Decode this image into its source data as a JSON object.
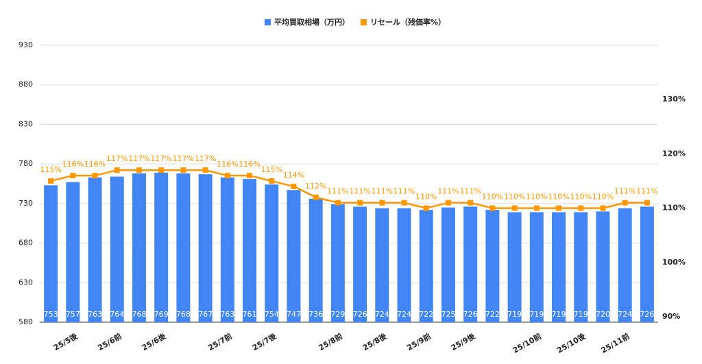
{
  "chart_data": {
    "type": "bar_line",
    "categories": [
      null,
      "25/5後",
      null,
      "25/6前",
      null,
      "25/6後",
      null,
      null,
      "25/7前",
      null,
      "25/7後",
      null,
      null,
      "25/8前",
      null,
      "25/8後",
      null,
      "25/9前",
      null,
      "25/9後",
      null,
      null,
      "25/10前",
      null,
      "25/10後",
      null,
      "25/11前",
      null
    ],
    "series": [
      {
        "name": "平均買取相場（万円）",
        "color": "#4285f4",
        "type": "bar",
        "values": [
          753,
          757,
          763,
          764,
          768,
          769,
          768,
          767,
          763,
          761,
          754,
          747,
          736,
          729,
          726,
          724,
          724,
          722,
          725,
          726,
          722,
          719,
          719,
          719,
          719,
          720,
          724,
          726
        ]
      },
      {
        "name": "リセール（残価率%）",
        "color": "#ff9800",
        "type": "line",
        "axis": "y2",
        "values": [
          115,
          116,
          116,
          117,
          117,
          117,
          117,
          117,
          116,
          116,
          115,
          114,
          112,
          111,
          111,
          111,
          111,
          110,
          111,
          111,
          110,
          110,
          110,
          110,
          110,
          110,
          111,
          111
        ],
        "value_labels": [
          "115%",
          "116%",
          "116%",
          "117%",
          "117%",
          "117%",
          "117%",
          "117%",
          "116%",
          "116%",
          "115%",
          "114%",
          "112%",
          "111%",
          "111%",
          "111%",
          "111%",
          "110%",
          "111%",
          "111%",
          "110%",
          "110%",
          "110%",
          "110%",
          "110%",
          "110%",
          "111%",
          "111%"
        ]
      }
    ],
    "ylim": [
      580,
      930
    ],
    "yticks": [
      580,
      630,
      680,
      730,
      780,
      830,
      880,
      930
    ],
    "y2lim": [
      89,
      140
    ],
    "y2ticks": [
      {
        "value": 90,
        "label": "90%"
      },
      {
        "value": 100,
        "label": "100%"
      },
      {
        "value": 110,
        "label": "110%"
      },
      {
        "value": 120,
        "label": "120%"
      },
      {
        "value": 130,
        "label": "130%"
      }
    ],
    "grid": true,
    "legend": "top"
  }
}
